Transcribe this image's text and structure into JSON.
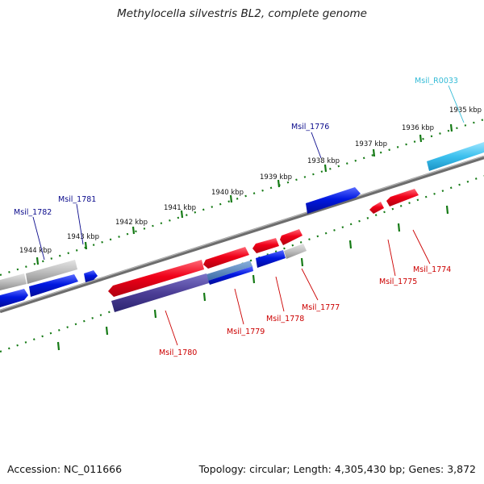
{
  "title": "Methylocella silvestris BL2, complete genome",
  "footer": {
    "accession": "Accession: NC_011666",
    "summary": "Topology: circular; Length: 4,305,430 bp; Genes: 3,872"
  },
  "colors": {
    "forward": "#e8001c",
    "reverse": "#0018d8",
    "hypothetical": "#b8b8b8",
    "rna": "#33bbe6",
    "reverse_label": "#0b0b8c",
    "forward_label": "#cc0000",
    "rna_label": "#33bbd6",
    "tick": "#157a15",
    "backbone": "#888888"
  },
  "kbp_labels": [
    "1935 kbp",
    "1936 kbp",
    "1937 kbp",
    "1938 kbp",
    "1939 kbp",
    "1940 kbp",
    "1941 kbp",
    "1942 kbp",
    "1943 kbp",
    "1944 kbp"
  ],
  "gene_labels": {
    "top": [
      "Msil_R0033",
      "Msil_1776",
      "Msil_1781",
      "Msil_1782"
    ],
    "bottom": [
      "Msil_1774",
      "Msil_1775",
      "Msil_1777",
      "Msil_1778",
      "Msil_1779",
      "Msil_1780"
    ]
  }
}
